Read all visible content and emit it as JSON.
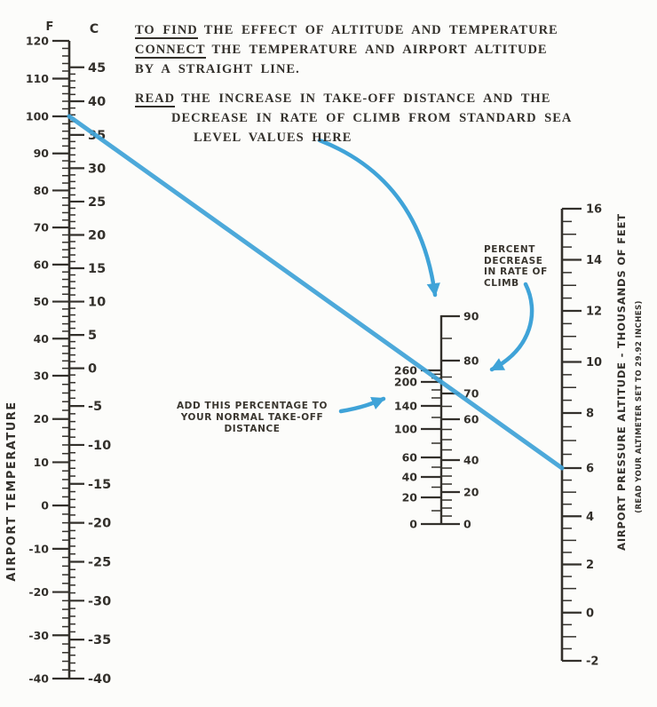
{
  "instructions": {
    "lines": [
      {
        "underlined": "TO FIND",
        "text": "THE EFFECT OF ALTITUDE AND TEMPERATURE"
      },
      {
        "underlined": "CONNECT",
        "text": "THE TEMPERATURE AND AIRPORT ALTITUDE"
      },
      {
        "underlined": "",
        "text": "BY A STRAIGHT LINE."
      },
      {
        "underlined": "READ",
        "text": "THE INCREASE IN TAKE-OFF DISTANCE AND THE"
      },
      {
        "underlined": "",
        "text": "DECREASE IN RATE OF CLIMB FROM STANDARD SEA"
      },
      {
        "underlined": "",
        "text": "LEVEL VALUES HERE"
      }
    ]
  },
  "annotations": {
    "takeoff": {
      "line1": "ADD THIS PERCENTAGE TO",
      "line2": "YOUR NORMAL TAKE-OFF DISTANCE"
    },
    "climb": {
      "lines": [
        "PERCENT",
        "DECREASE",
        "IN RATE OF",
        "CLIMB"
      ]
    }
  },
  "colors": {
    "accent_blue": "#3fa3d8",
    "ink": "#33302b"
  },
  "chart_data": {
    "type": "nomogram",
    "title": "Effect of altitude and temperature on take-off distance and rate of climb",
    "scales": {
      "temperature": {
        "axis_label": "AIRPORT TEMPERATURE",
        "fahrenheit": {
          "unit": "F",
          "labeled_ticks": [
            120,
            110,
            100,
            90,
            80,
            70,
            60,
            50,
            40,
            30,
            20,
            10,
            0,
            -10,
            -20,
            -30,
            -40
          ],
          "minor_step": 2,
          "min": -40,
          "max": 120
        },
        "celsius": {
          "unit": "C",
          "labeled_ticks": [
            45,
            40,
            35,
            30,
            25,
            20,
            15,
            10,
            5,
            0,
            -5,
            -10,
            -15,
            -20,
            -25,
            -30,
            -35,
            -40
          ],
          "minor_step": 1,
          "min": -40,
          "max": 45
        }
      },
      "percent": {
        "takeoff_distance_increase_pct": {
          "labeled_ticks": [
            260,
            200,
            140,
            100,
            60,
            40,
            20,
            0
          ],
          "minor_ticks": [
            240,
            220,
            180,
            160,
            120,
            80,
            50,
            30,
            10
          ]
        },
        "rate_of_climb_decrease_pct": {
          "labeled_ticks": [
            90,
            80,
            70,
            60,
            40,
            20,
            0
          ],
          "minor_ticks": [
            85,
            75,
            65,
            55,
            50,
            45,
            35,
            30,
            25,
            15,
            10,
            5
          ]
        }
      },
      "altitude": {
        "axis_label": "AIRPORT PRESSURE ALTITUDE - THOUSANDS OF FEET",
        "axis_sublabel": "(READ YOUR ALTIMETER SET TO 29.92 INCHES)",
        "labeled_ticks": [
          16,
          14,
          12,
          10,
          8,
          6,
          4,
          2,
          0,
          -2
        ],
        "minor_step": 0.5,
        "min": -2,
        "max": 16
      }
    },
    "example_line": {
      "airport_temperature_f": 100,
      "airport_pressure_altitude_thousands_ft": 6
    }
  }
}
